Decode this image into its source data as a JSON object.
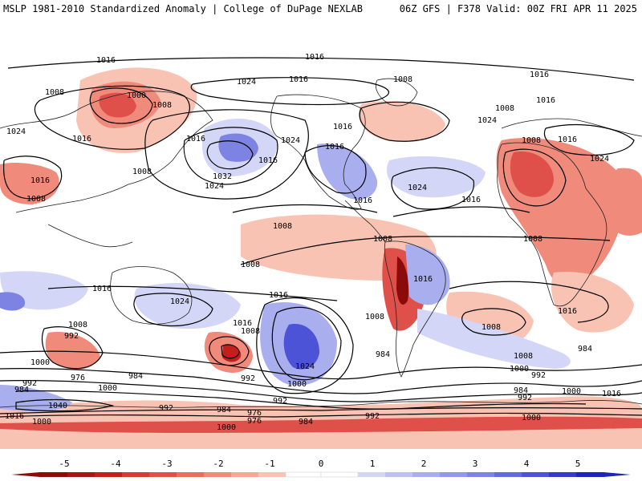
{
  "header": {
    "left_title": "MSLP 1981-2010 Standardized Anomaly | College of DuPage NEXLAB",
    "right_title": "06Z GFS | F378 Valid: 00Z FRI APR 11 2025"
  },
  "colors": {
    "neg5": "#8b0a0a",
    "neg4": "#c41f1f",
    "neg3": "#e0504a",
    "neg2": "#f08a7a",
    "neg1": "#f9c3b4",
    "zero": "#ffffff",
    "pos1": "#d3d6f6",
    "pos2": "#a8aeee",
    "pos3": "#7c83e3",
    "pos4": "#4c53d6",
    "pos5": "#1f24b8",
    "contour": "#000000",
    "coast": "#222222"
  },
  "colorbar": {
    "ticks": [
      "-5",
      "-4",
      "-3",
      "-2",
      "-1",
      "0",
      "1",
      "2",
      "3",
      "4",
      "5"
    ]
  },
  "isobar_labels": {
    "l1016_a": "1016",
    "l1016_b": "1016",
    "l1016_c": "1016",
    "l1016_d": "1016",
    "l1016_e": "1016",
    "l1016_f": "1016",
    "l1016_g": "1016",
    "l1016_h": "1016",
    "l1016_i": "1016",
    "l1016_j": "1016",
    "l1016_k": "1016",
    "l1016_l": "1016",
    "l1016_m": "1016",
    "l1016_n": "1016",
    "l1016_o": "1016",
    "l1016_p": "1016",
    "l1016_q": "1016",
    "l1016_r": "1016",
    "l1016_s": "1016",
    "l1024_a": "1024",
    "l1024_b": "1024",
    "l1024_c": "1024",
    "l1024_d": "1024",
    "l1024_e": "1024",
    "l1024_f": "1024",
    "l1024_g": "1024",
    "l1024_h": "1024",
    "l1024_i": "1024",
    "l1008_a": "1008",
    "l1008_b": "1008",
    "l1008_c": "1008",
    "l1008_d": "1008",
    "l1008_e": "1008",
    "l1008_f": "1008",
    "l1008_g": "1008",
    "l1008_h": "1008",
    "l1008_i": "1008",
    "l1008_j": "1008",
    "l1008_k": "1008",
    "l1008_l": "1008",
    "l1008_m": "1008",
    "l1008_n": "1008",
    "l1008_o": "1008",
    "l1008_p": "1008",
    "l1000_a": "1000",
    "l1000_b": "1000",
    "l1000_c": "1000",
    "l1000_d": "1000",
    "l1000_e": "1000",
    "l1000_f": "1000",
    "l1000_g": "1000",
    "l1000_h": "1000",
    "l1032_a": "1032",
    "l1040_a": "1040",
    "l992_a": "992",
    "l992_b": "992",
    "l992_c": "992",
    "l992_d": "992",
    "l992_e": "992",
    "l992_f": "992",
    "l992_g": "992",
    "l992_h": "992",
    "l984_a": "984",
    "l984_b": "984",
    "l984_c": "984",
    "l984_d": "984",
    "l984_e": "984",
    "l984_f": "984",
    "l984_g": "984",
    "l976_a": "976",
    "l976_b": "976",
    "l976_c": "976"
  }
}
